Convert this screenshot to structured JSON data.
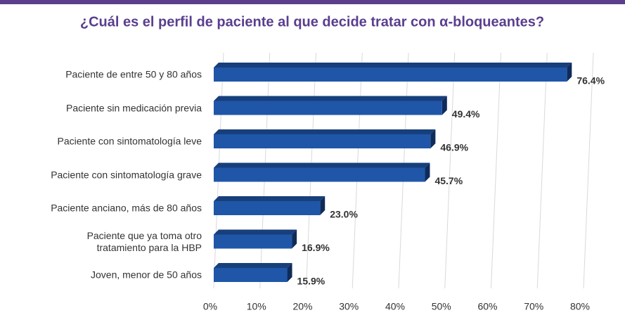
{
  "chart_data": {
    "type": "bar",
    "orientation": "horizontal",
    "title": "¿Cuál es el perfil de paciente al que decide tratar con α-bloqueantes?",
    "categories": [
      "Paciente de entre 50 y 80 años",
      "Paciente sin medicación previa",
      "Paciente con sintomatología leve",
      "Paciente con sintomatología grave",
      "Paciente anciano, más de 80 años",
      "Paciente que ya toma otro\ntratamiento para la HBP",
      "Joven, menor de 50 años"
    ],
    "values": [
      76.4,
      49.4,
      46.9,
      45.7,
      23.0,
      16.9,
      15.9
    ],
    "value_labels": [
      "76.4%",
      "49.4%",
      "46.9%",
      "45.7%",
      "23.0%",
      "16.9%",
      "15.9%"
    ],
    "color": "#1f56a8",
    "xlim": [
      0,
      80
    ],
    "xticks": [
      {
        "value": 0,
        "label": "0%"
      },
      {
        "value": 10,
        "label": "10%"
      },
      {
        "value": 20,
        "label": "20%"
      },
      {
        "value": 30,
        "label": "30%"
      },
      {
        "value": 40,
        "label": "40%"
      },
      {
        "value": 50,
        "label": "50%"
      },
      {
        "value": 60,
        "label": "60%"
      },
      {
        "value": 70,
        "label": "70%"
      },
      {
        "value": 80,
        "label": "80%"
      }
    ],
    "grid": true
  }
}
